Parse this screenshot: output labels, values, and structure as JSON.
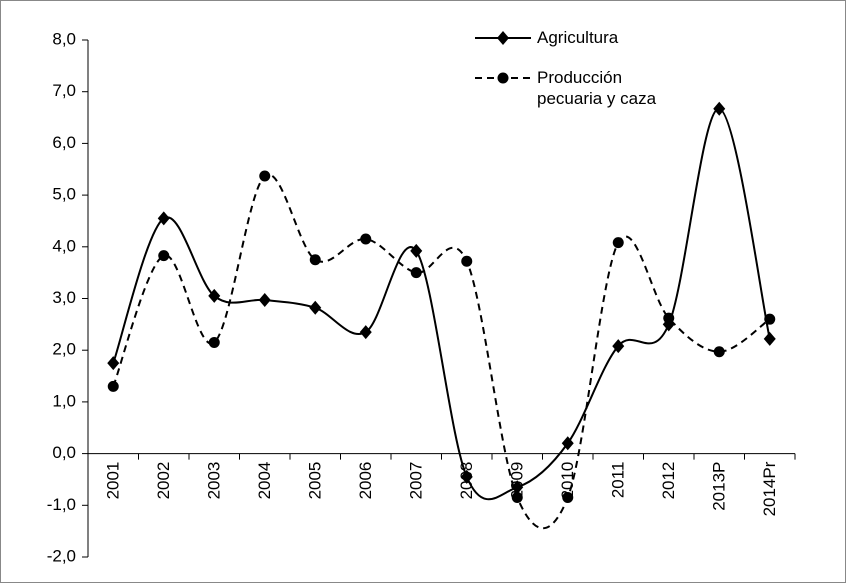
{
  "chart_data": {
    "type": "line",
    "categories": [
      "2001",
      "2002",
      "2003",
      "2004",
      "2005",
      "2006",
      "2007",
      "2008",
      "2009",
      "2010",
      "2011",
      "2012",
      "2013P",
      "2014Pr"
    ],
    "series": [
      {
        "name": "Agricultura",
        "color": "#000000",
        "dash": false,
        "marker": "diamond",
        "values": [
          1.75,
          4.55,
          3.05,
          2.97,
          2.82,
          2.35,
          3.92,
          -0.45,
          -0.65,
          0.2,
          2.08,
          2.5,
          6.67,
          2.22
        ]
      },
      {
        "name": "Producción pecuaria y caza",
        "color": "#000000",
        "dash": true,
        "marker": "circle",
        "values": [
          1.3,
          3.83,
          2.15,
          5.37,
          3.75,
          4.15,
          3.5,
          3.72,
          -0.85,
          -0.85,
          4.08,
          2.62,
          1.97,
          2.6
        ]
      }
    ],
    "ylim": [
      -2,
      8
    ],
    "yticks": [
      {
        "value": -2,
        "label": "-2,0"
      },
      {
        "value": -1,
        "label": "-1,0"
      },
      {
        "value": 0,
        "label": "0,0"
      },
      {
        "value": 1,
        "label": "1,0"
      },
      {
        "value": 2,
        "label": "2,0"
      },
      {
        "value": 3,
        "label": "3,0"
      },
      {
        "value": 4,
        "label": "4,0"
      },
      {
        "value": 5,
        "label": "5,0"
      },
      {
        "value": 6,
        "label": "6,0"
      },
      {
        "value": 7,
        "label": "7,0"
      },
      {
        "value": 8,
        "label": "8,0"
      }
    ],
    "grid": false,
    "legend": "top-right",
    "smooth": true
  }
}
